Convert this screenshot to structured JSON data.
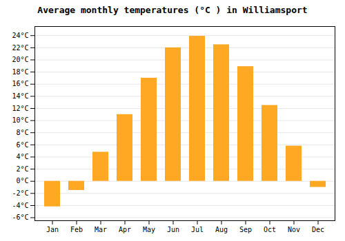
{
  "chart_data": {
    "type": "bar",
    "title": "Average monthly temperatures (°C ) in Williamsport",
    "categories": [
      "Jan",
      "Feb",
      "Mar",
      "Apr",
      "May",
      "Jun",
      "Jul",
      "Aug",
      "Sep",
      "Oct",
      "Nov",
      "Dec"
    ],
    "values": [
      -4.2,
      -1.5,
      4.8,
      11.0,
      17.0,
      22.0,
      23.9,
      22.5,
      18.9,
      12.5,
      5.8,
      -1.0
    ],
    "color": "#FFA824",
    "ylim": [
      -6.5,
      25.5
    ],
    "yticks": [
      {
        "value": -6,
        "label": "-6°C"
      },
      {
        "value": -4,
        "label": "-4°C"
      },
      {
        "value": -2,
        "label": "-2°C"
      },
      {
        "value": 0,
        "label": "0°C"
      },
      {
        "value": 2,
        "label": "2°C"
      },
      {
        "value": 4,
        "label": "4°C"
      },
      {
        "value": 6,
        "label": "6°C"
      },
      {
        "value": 8,
        "label": "8°C"
      },
      {
        "value": 10,
        "label": "10°C"
      },
      {
        "value": 12,
        "label": "12°C"
      },
      {
        "value": 14,
        "label": "14°C"
      },
      {
        "value": 16,
        "label": "16°C"
      },
      {
        "value": 18,
        "label": "18°C"
      },
      {
        "value": 20,
        "label": "20°C"
      },
      {
        "value": 22,
        "label": "22°C"
      },
      {
        "value": 24,
        "label": "24°C"
      }
    ],
    "grid": true
  }
}
